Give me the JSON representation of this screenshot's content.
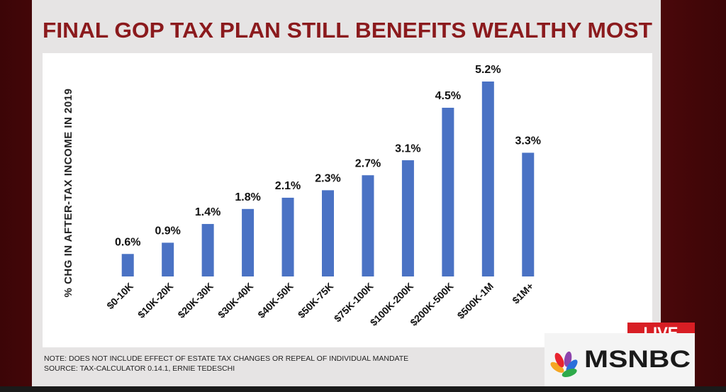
{
  "chart_data": {
    "type": "bar",
    "title": "FINAL GOP TAX PLAN STILL BENEFITS WEALTHY MOST",
    "y_label": "% CHG IN AFTER-TAX INCOME IN 2019",
    "categories": [
      "$0-10K",
      "$10K-20K",
      "$20K-30K",
      "$30K-40K",
      "$40K-50K",
      "$50K-75K",
      "$75K-100K",
      "$100K-200K",
      "$200K-500K",
      "$500K-1M",
      "$1M+"
    ],
    "values": [
      0.6,
      0.9,
      1.4,
      1.8,
      2.1,
      2.3,
      2.7,
      3.1,
      4.5,
      5.2,
      3.3
    ],
    "value_labels": [
      "0.6%",
      "0.9%",
      "1.4%",
      "1.8%",
      "2.1%",
      "2.3%",
      "2.7%",
      "3.1%",
      "4.5%",
      "5.2%",
      "3.3%"
    ],
    "color": "#4a72c4",
    "note": "NOTE: DOES NOT INCLUDE EFFECT OF ESTATE TAX CHANGES OR REPEAL OF INDIVIDUAL MANDATE",
    "source": "SOURCE: TAX-CALCULATOR 0.14.1, ERNIE TEDESCHI"
  },
  "overlay": {
    "live": "LIVE",
    "network": "MSNBC"
  }
}
